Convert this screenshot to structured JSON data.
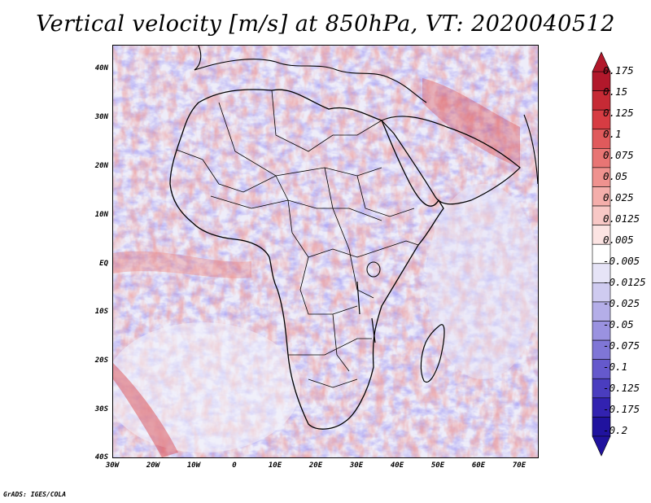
{
  "title": "Vertical velocity [m/s] at 850hPa, VT: 2020040512",
  "credit": "GrADS: IGES/COLA",
  "map": {
    "lon_range": [
      -30,
      75
    ],
    "lat_range": [
      -40,
      45
    ],
    "lat_ticks": [
      "40N",
      "30N",
      "20N",
      "10N",
      "EQ",
      "10S",
      "20S",
      "30S",
      "40S"
    ],
    "lon_ticks": [
      "30W",
      "20W",
      "10W",
      "0",
      "10E",
      "20E",
      "30E",
      "40E",
      "50E",
      "60E",
      "70E"
    ]
  },
  "colorbar": {
    "labels": [
      "0.175",
      "0.15",
      "0.125",
      "0.1",
      "0.075",
      "0.05",
      "0.025",
      "0.0125",
      "0.005",
      "-0.005",
      "-0.0125",
      "-0.025",
      "-0.05",
      "-0.075",
      "-0.1",
      "-0.125",
      "-0.175",
      "-0.2"
    ],
    "colors": [
      "#b2182b",
      "#c62a35",
      "#d73c43",
      "#e05a5c",
      "#e87574",
      "#ef928f",
      "#f4aeab",
      "#f8c8c6",
      "#fce4e3",
      "#ffffff",
      "#e6e4f7",
      "#cfcbf0",
      "#b4aee8",
      "#9a92e0",
      "#7f76d6",
      "#6559cc",
      "#4a3dbf",
      "#3222b0",
      "#20129e"
    ]
  }
}
